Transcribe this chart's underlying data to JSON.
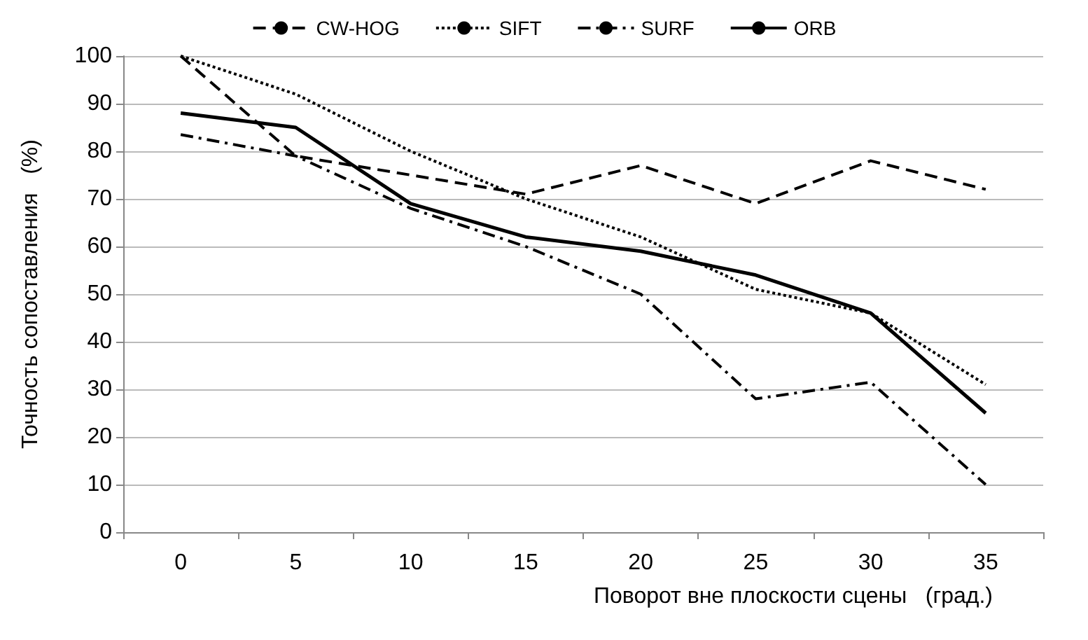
{
  "chart_data": {
    "type": "line",
    "xlabel": "Поворот вне плоскости сцены   (град.)",
    "ylabel": "Точность сопоставления   (%)",
    "categories": [
      "0",
      "5",
      "10",
      "15",
      "20",
      "25",
      "30",
      "35"
    ],
    "series": [
      {
        "name": "CW-HOG",
        "color": "#000000",
        "line_style": "dashed",
        "values": [
          100,
          79,
          75,
          71,
          77,
          69,
          78,
          72
        ]
      },
      {
        "name": "SIFT",
        "color": "#000000",
        "line_style": "dotted",
        "values": [
          100,
          92,
          80,
          70,
          62,
          51,
          46,
          31
        ]
      },
      {
        "name": "SURF",
        "color": "#000000",
        "line_style": "dashdot",
        "values": [
          83.5,
          79,
          68,
          60,
          50,
          28,
          31.5,
          10
        ]
      },
      {
        "name": "ORB",
        "color": "#000000",
        "line_style": "solid",
        "values": [
          88,
          85,
          69,
          62,
          59,
          54,
          46,
          25
        ]
      }
    ],
    "ylim": [
      0,
      100
    ],
    "yticks": [
      0,
      10,
      20,
      30,
      40,
      50,
      60,
      70,
      80,
      90,
      100
    ],
    "grid": "y",
    "legend": "top",
    "marker": "none"
  }
}
